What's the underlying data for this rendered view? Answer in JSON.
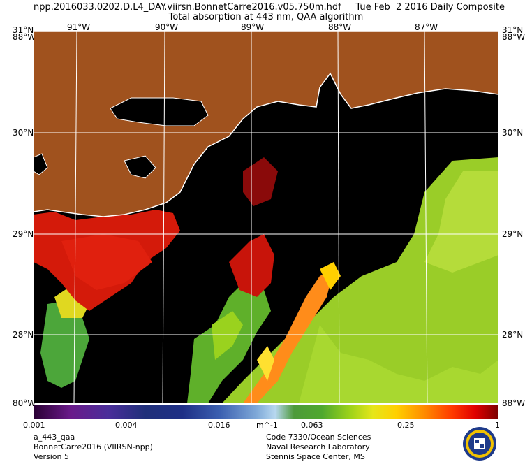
{
  "header": {
    "line1": "npp.2016033.0202.D.L4_DAY.viirsn.BonnetCarre2016.v05.750m.hdf     Tue Feb  2 2016 Daily Composite",
    "line2": "Total absorption at 443 nm, QAA algorithm"
  },
  "axes": {
    "top_lon": [
      "91°W",
      "90°W",
      "89°W",
      "88°W",
      "87°W"
    ],
    "left_lat": [
      "31°N",
      "30°N",
      "29°N",
      "28°N",
      "80°W"
    ],
    "right_lat": [
      "31°N",
      "30°N",
      "29°N",
      "28°N",
      "88°W"
    ],
    "corner_tl": "88°W",
    "corner_tr": "88°W"
  },
  "colorbar": {
    "unit": "m^-1",
    "ticks": [
      "0.001",
      "0.004",
      "0.016",
      "0.063",
      "0.25",
      "1"
    ],
    "scale": "log"
  },
  "footer": {
    "left": [
      "a_443_qaa",
      "BonnetCarre2016 (VIIRSN-npp)",
      "Version 5"
    ],
    "right": [
      "Code 7330/Ocean Sciences",
      "Naval Research Laboratory",
      "Stennis Space Center, MS"
    ]
  },
  "colors": {
    "land": "#a0521e",
    "nodata": "#000000",
    "high": "#d20000",
    "mid": "#ff8c00",
    "low": "#9ad21e"
  },
  "icons": [
    "nrl-seal-icon"
  ]
}
